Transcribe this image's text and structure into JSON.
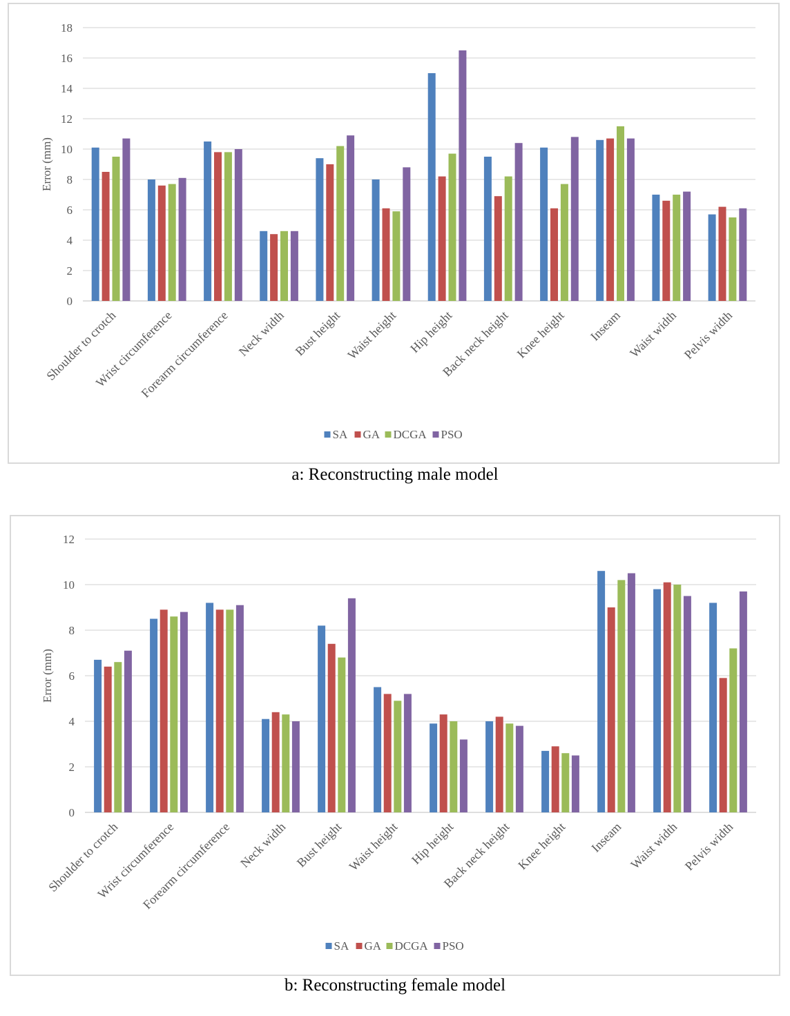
{
  "colors": {
    "SA": "#4f81bd",
    "GA": "#c0504d",
    "DCGA": "#9bbb59",
    "PSO": "#8064a2",
    "grid": "#d9d9d9",
    "axis_text": "#595959"
  },
  "chart_data": [
    {
      "type": "bar",
      "caption": "a: Reconstructing male model",
      "ylabel": "Error (mm)",
      "ylim": [
        0,
        18
      ],
      "yticks": [
        0,
        2,
        4,
        6,
        8,
        10,
        12,
        14,
        16,
        18
      ],
      "grid": true,
      "legend": "bottom",
      "categories": [
        "Shoulder to crotch",
        "Wrist circumference",
        "Forearm circumference",
        "Neck width",
        "Bust height",
        "Waist height",
        "Hip height",
        "Back neck height",
        "Knee height",
        "Inseam",
        "Waist width",
        "Pelvis width"
      ],
      "series": [
        {
          "name": "SA",
          "values": [
            10.1,
            8.0,
            10.5,
            4.6,
            9.4,
            8.0,
            15.0,
            9.5,
            10.1,
            10.6,
            7.0,
            5.7
          ]
        },
        {
          "name": "GA",
          "values": [
            8.5,
            7.6,
            9.8,
            4.4,
            9.0,
            6.1,
            8.2,
            6.9,
            6.1,
            10.7,
            6.6,
            6.2
          ]
        },
        {
          "name": "DCGA",
          "values": [
            9.5,
            7.7,
            9.8,
            4.6,
            10.2,
            5.9,
            9.7,
            8.2,
            7.7,
            11.5,
            7.0,
            5.5
          ]
        },
        {
          "name": "PSO",
          "values": [
            10.7,
            8.1,
            10.0,
            4.6,
            10.9,
            8.8,
            16.5,
            10.4,
            10.8,
            10.7,
            7.2,
            6.1
          ]
        }
      ]
    },
    {
      "type": "bar",
      "caption": "b: Reconstructing female model",
      "ylabel": "Error (mm)",
      "ylim": [
        0,
        12
      ],
      "yticks": [
        0,
        2,
        4,
        6,
        8,
        10,
        12
      ],
      "grid": true,
      "legend": "bottom",
      "categories": [
        "Shoulder to crotch",
        "Wrist circumference",
        "Forearm circumference",
        "Neck width",
        "Bust height",
        "Waist height",
        "Hip height",
        "Back neck height",
        "Knee height",
        "Inseam",
        "Waist width",
        "Pelvis width"
      ],
      "series": [
        {
          "name": "SA",
          "values": [
            6.7,
            8.5,
            9.2,
            4.1,
            8.2,
            5.5,
            3.9,
            4.0,
            2.7,
            10.6,
            9.8,
            9.2
          ]
        },
        {
          "name": "GA",
          "values": [
            6.4,
            8.9,
            8.9,
            4.4,
            7.4,
            5.2,
            4.3,
            4.2,
            2.9,
            9.0,
            10.1,
            5.9
          ]
        },
        {
          "name": "DCGA",
          "values": [
            6.6,
            8.6,
            8.9,
            4.3,
            6.8,
            4.9,
            4.0,
            3.9,
            2.6,
            10.2,
            10.0,
            7.2
          ]
        },
        {
          "name": "PSO",
          "values": [
            7.1,
            8.8,
            9.1,
            4.0,
            9.4,
            5.2,
            3.2,
            3.8,
            2.5,
            10.5,
            9.5,
            9.7
          ]
        }
      ]
    }
  ]
}
